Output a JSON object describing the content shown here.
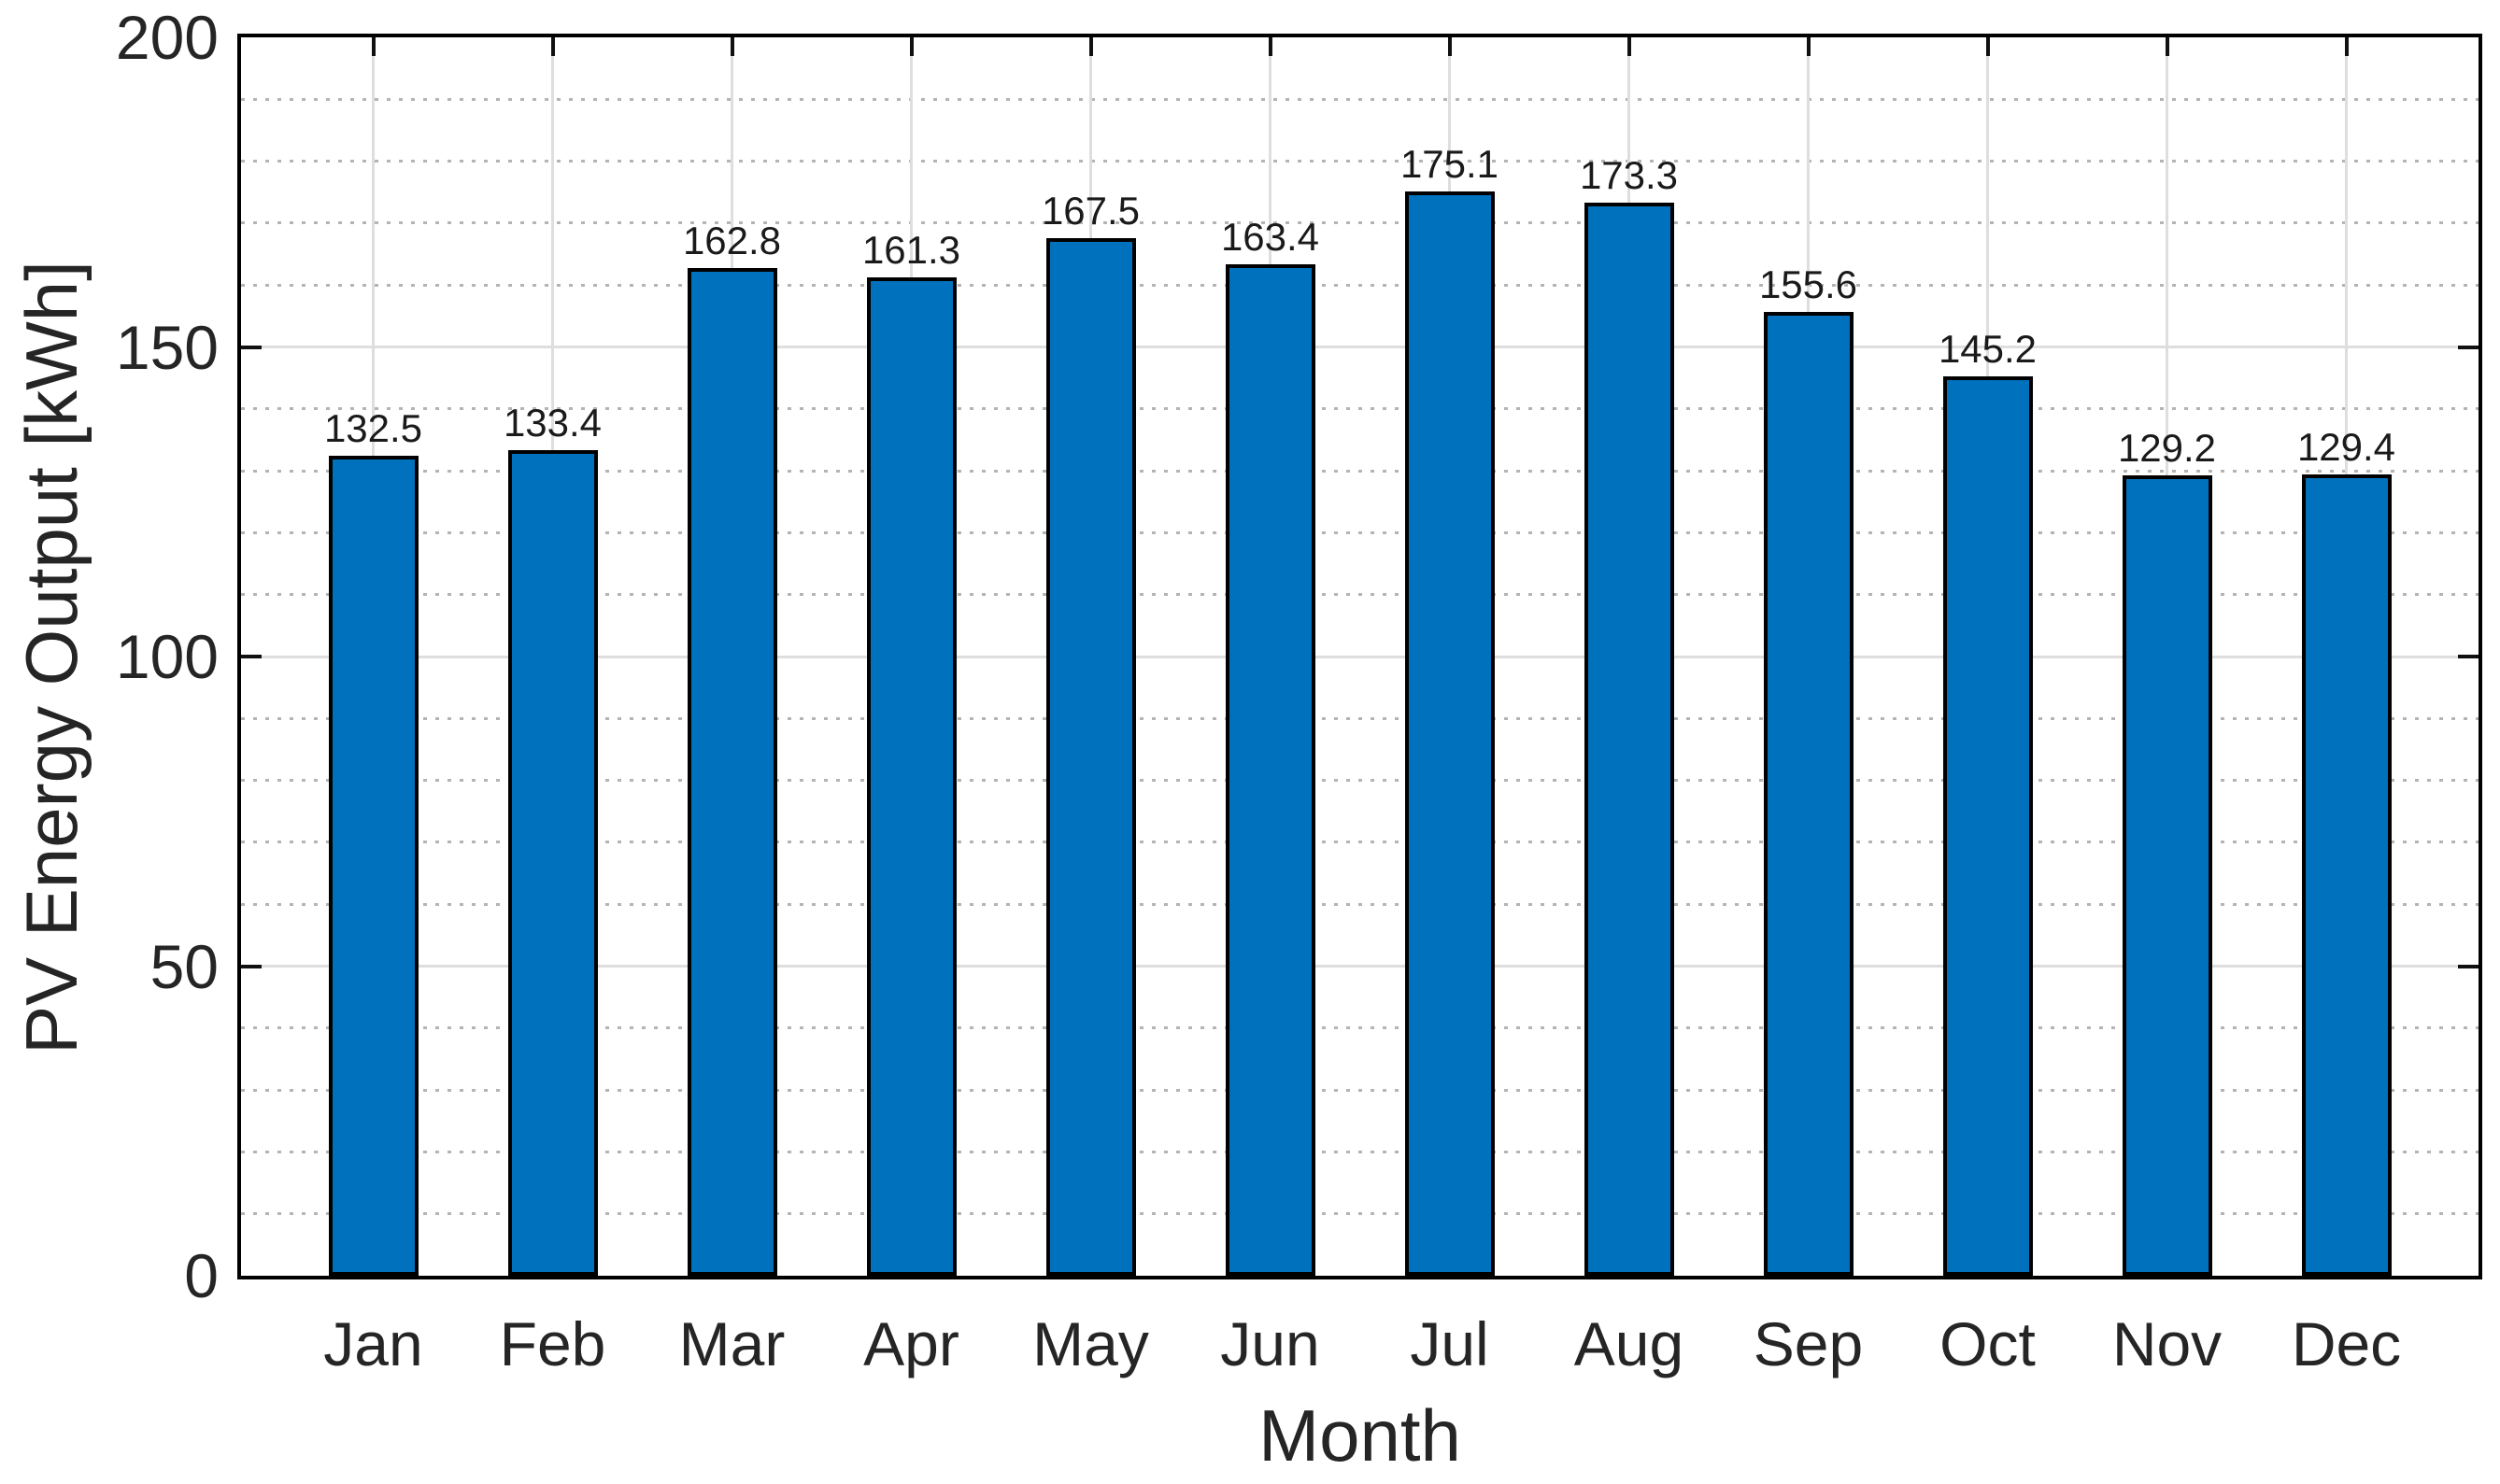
{
  "chart_data": {
    "type": "bar",
    "title": "",
    "xlabel": "Month",
    "ylabel": "PV Energy Output [kWh]",
    "categories": [
      "Jan",
      "Feb",
      "Mar",
      "Apr",
      "May",
      "Jun",
      "Jul",
      "Aug",
      "Sep",
      "Oct",
      "Nov",
      "Dec"
    ],
    "values": [
      132.5,
      133.4,
      162.8,
      161.3,
      167.5,
      163.4,
      175.1,
      173.3,
      155.6,
      145.2,
      129.2,
      129.4
    ],
    "data_labels": [
      "132.5",
      "133.4",
      "162.8",
      "161.3",
      "167.5",
      "163.4",
      "175.1",
      "173.3",
      "155.6",
      "145.2",
      "129.2",
      "129.4"
    ],
    "ylim": [
      0,
      200
    ],
    "yticks": [
      0,
      50,
      100,
      150,
      200
    ],
    "y_minor_step": 10,
    "grid": "major-on",
    "minor_grid": "dotted-y",
    "legend": "none",
    "colors": {
      "bar_fill": "#0072BD",
      "bar_edge": "#000000",
      "axis_box": "#000000",
      "major_grid": "#dedede",
      "minor_grid": "#b4b4b4",
      "text": "#252525",
      "background": "#ffffff"
    }
  }
}
